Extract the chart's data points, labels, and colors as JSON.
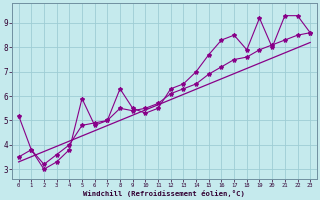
{
  "xlabel": "Windchill (Refroidissement éolien,°C)",
  "ylabel_ticks": [
    3,
    4,
    5,
    6,
    7,
    8,
    9
  ],
  "xlim": [
    -0.5,
    23.5
  ],
  "ylim": [
    2.6,
    9.8
  ],
  "xticks": [
    0,
    1,
    2,
    3,
    4,
    5,
    6,
    7,
    8,
    9,
    10,
    11,
    12,
    13,
    14,
    15,
    16,
    17,
    18,
    19,
    20,
    21,
    22,
    23
  ],
  "bg_color": "#c5eaed",
  "grid_color": "#9ecdd4",
  "line_color": "#880088",
  "jagged_x": [
    0,
    1,
    2,
    3,
    4,
    5,
    6,
    7,
    8,
    9,
    10,
    11,
    12,
    13,
    14,
    15,
    16,
    17,
    18,
    19,
    20,
    21,
    22,
    23
  ],
  "jagged_y": [
    5.2,
    3.8,
    3.0,
    3.3,
    3.8,
    5.9,
    4.8,
    5.0,
    6.3,
    5.5,
    5.3,
    5.5,
    6.3,
    6.5,
    7.0,
    7.7,
    8.3,
    8.5,
    7.9,
    9.2,
    8.0,
    9.3,
    9.3,
    8.6
  ],
  "trend1_x": [
    0,
    1,
    2,
    3,
    4,
    5,
    6,
    7,
    8,
    9,
    10,
    11,
    12,
    13,
    14,
    15,
    16,
    17,
    18,
    19,
    20,
    21,
    22,
    23
  ],
  "trend1_y": [
    3.5,
    3.8,
    3.2,
    3.6,
    4.0,
    4.8,
    4.9,
    5.0,
    5.5,
    5.4,
    5.5,
    5.7,
    6.1,
    6.3,
    6.5,
    6.9,
    7.2,
    7.5,
    7.6,
    7.9,
    8.1,
    8.3,
    8.5,
    8.6
  ],
  "trend2_x": [
    0,
    23
  ],
  "trend2_y": [
    3.3,
    8.2
  ]
}
